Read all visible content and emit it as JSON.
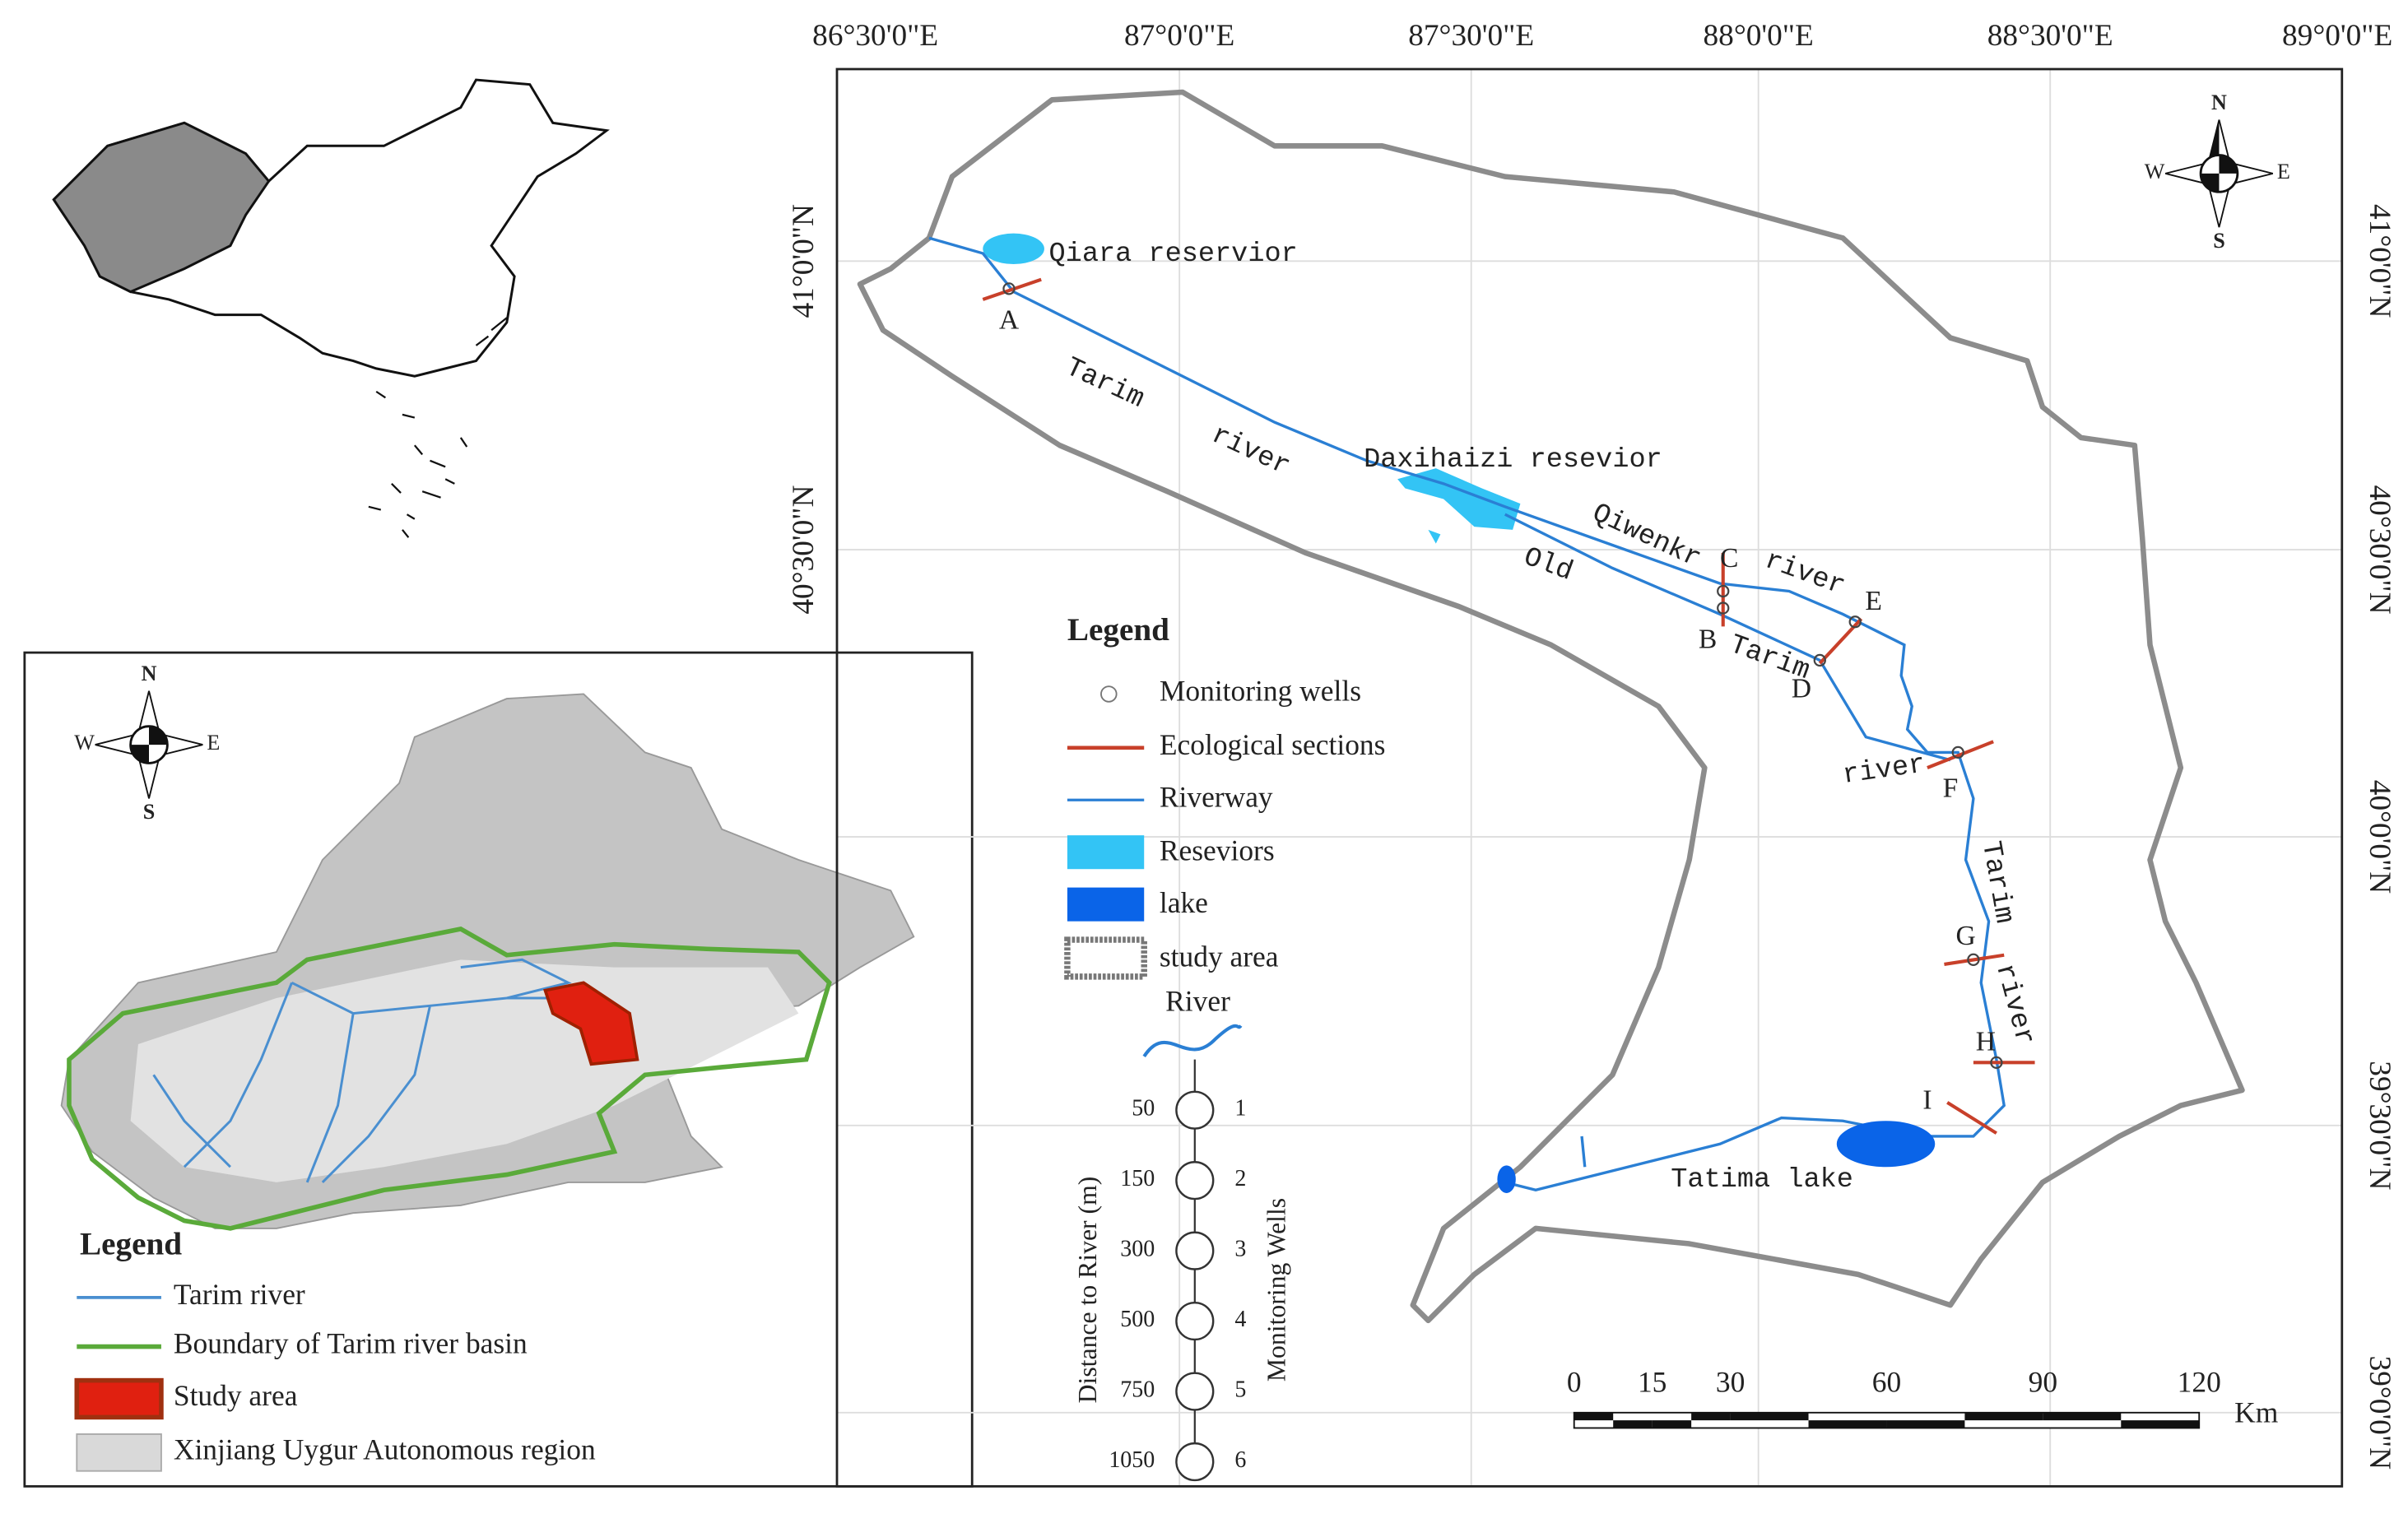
{
  "main_map": {
    "longitude_labels": [
      "86°30'0\"E",
      "87°0'0\"E",
      "87°30'0\"E",
      "88°0'0\"E",
      "88°30'0\"E",
      "89°0'0\"E"
    ],
    "latitude_labels_left": [
      "41°0'0\"N",
      "40°30'0\"N"
    ],
    "latitude_labels_right": [
      "41°0'0\"N",
      "40°30'0\"N",
      "40°0'0\"N",
      "39°30'0\"N",
      "39°0'0\"N"
    ],
    "compass": {
      "north": "N",
      "south": "S",
      "west": "W",
      "east": "E"
    },
    "places": [
      "Qiara reservior",
      "Tarim",
      "river",
      "Daxihaizi resevior",
      "Qiwenkr",
      "river",
      "Old",
      "Tarim",
      "river",
      "Tarim",
      "river",
      "Tatima lake"
    ],
    "section_labels": [
      "A",
      "B",
      "C",
      "D",
      "E",
      "F",
      "G",
      "H",
      "I"
    ],
    "legend": {
      "title": "Legend",
      "items": [
        "Monitoring wells",
        "Ecological sections",
        "Riverway",
        "Reseviors",
        "lake",
        "study area"
      ]
    },
    "well_diagram": {
      "title": "River",
      "distance_label": "Distance to River (m)",
      "wells_label": "Monitoring Wells",
      "distances": [
        50,
        150,
        300,
        500,
        750,
        1050
      ],
      "wells": [
        1,
        2,
        3,
        4,
        5,
        6
      ]
    },
    "scale_bar": {
      "ticks": [
        0,
        15,
        30,
        60,
        90,
        120
      ],
      "unit": "Km"
    }
  },
  "inset_map": {
    "compass": {
      "north": "N",
      "south": "S",
      "west": "W",
      "east": "E"
    },
    "legend": {
      "title": "Legend",
      "items": [
        "Tarim river",
        "Boundary of Tarim river basin",
        "Study area",
        "Xinjiang Uygur Autonomous region"
      ]
    }
  }
}
